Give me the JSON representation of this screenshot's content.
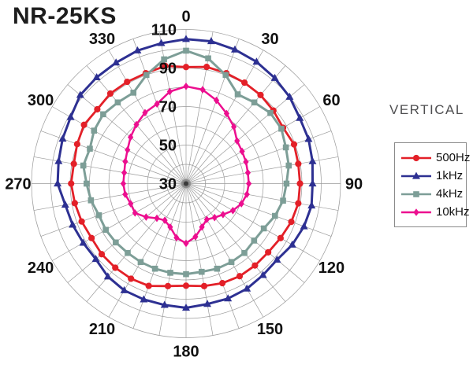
{
  "title": "NR-25KS",
  "orientation_label": "VERTICAL",
  "legend": {
    "position": "right",
    "items": [
      {
        "label": "500Hz",
        "color": "#e32028",
        "marker": "circle"
      },
      {
        "label": "1kHz",
        "color": "#2d3092",
        "marker": "triangle"
      },
      {
        "label": "4kHz",
        "color": "#7d9e97",
        "marker": "square"
      },
      {
        "label": "10kHz",
        "color": "#ec0f8f",
        "marker": "diamond"
      }
    ]
  },
  "chart_data": {
    "type": "line",
    "projection": "polar",
    "title": "NR-25KS",
    "grid": true,
    "legend_position": "right",
    "grid_color": "#9a9a9a",
    "label_color": "#111111",
    "angles_deg": [
      0,
      10,
      20,
      30,
      40,
      50,
      60,
      70,
      80,
      90,
      100,
      110,
      120,
      130,
      140,
      150,
      160,
      170,
      180,
      190,
      200,
      210,
      220,
      230,
      240,
      250,
      260,
      270,
      280,
      290,
      300,
      310,
      320,
      330,
      340,
      350
    ],
    "radial_axis": {
      "min": 30,
      "max": 110,
      "ring_step": 10,
      "tick_labels": [
        "30",
        "50",
        "70",
        "90",
        "110"
      ],
      "tick_values": [
        30,
        50,
        70,
        90,
        110
      ]
    },
    "angular_axis": {
      "labels": [
        "0",
        "30",
        "60",
        "90",
        "120",
        "150",
        "180",
        "210",
        "240",
        "270",
        "300",
        "330"
      ],
      "label_values": [
        0,
        30,
        60,
        90,
        120,
        150,
        180,
        210,
        240,
        270,
        300,
        330
      ],
      "spoke_step_deg": 10
    },
    "series": [
      {
        "name": "500Hz",
        "color": "#e32028",
        "marker": "circle",
        "line_width": 2.8,
        "values": [
          90.5,
          91.5,
          91,
          90.5,
          90,
          89,
          88,
          89.5,
          89,
          89,
          89,
          88,
          86.5,
          85.5,
          85.5,
          85.5,
          85,
          84,
          83,
          84,
          86.5,
          87,
          87,
          87,
          86.5,
          87.5,
          88.5,
          89.5,
          89,
          90,
          91,
          90,
          91,
          91,
          91,
          92
        ]
      },
      {
        "name": "1kHz",
        "color": "#2d3092",
        "marker": "triangle",
        "line_width": 3,
        "values": [
          105,
          105,
          104,
          103,
          101.5,
          100,
          98,
          97.5,
          96.5,
          95.5,
          96,
          95,
          93.5,
          91.5,
          92,
          93,
          93.5,
          93.5,
          94.5,
          94,
          94,
          94,
          93,
          91,
          91.5,
          92.5,
          93.5,
          96.5,
          97,
          98,
          99,
          101.5,
          102,
          102.5,
          103.5,
          104
        ]
      },
      {
        "name": "4kHz",
        "color": "#7d9e97",
        "marker": "square",
        "line_width": 3,
        "values": [
          99,
          96,
          90,
          83.5,
          85,
          87,
          87,
          85,
          84,
          82,
          81,
          79,
          76.5,
          76,
          77,
          77,
          77,
          76.5,
          77,
          77,
          77,
          77,
          77,
          77.5,
          78,
          78,
          80,
          81.5,
          84,
          83,
          85,
          86,
          85,
          84.5,
          90,
          95.5
        ]
      },
      {
        "name": "10kHz",
        "color": "#ec0f8f",
        "marker": "diamond",
        "line_width": 2.5,
        "values": [
          80.5,
          79.5,
          76,
          72,
          68.5,
          64.5,
          63.5,
          63,
          62.5,
          62.5,
          62,
          60.5,
          58,
          55,
          53,
          51.5,
          54,
          58,
          61,
          58.5,
          54,
          52,
          53.5,
          57,
          60.5,
          60.5,
          62,
          62.5,
          62.5,
          63.5,
          65,
          67.5,
          70,
          72.5,
          74,
          78.5
        ]
      }
    ]
  }
}
